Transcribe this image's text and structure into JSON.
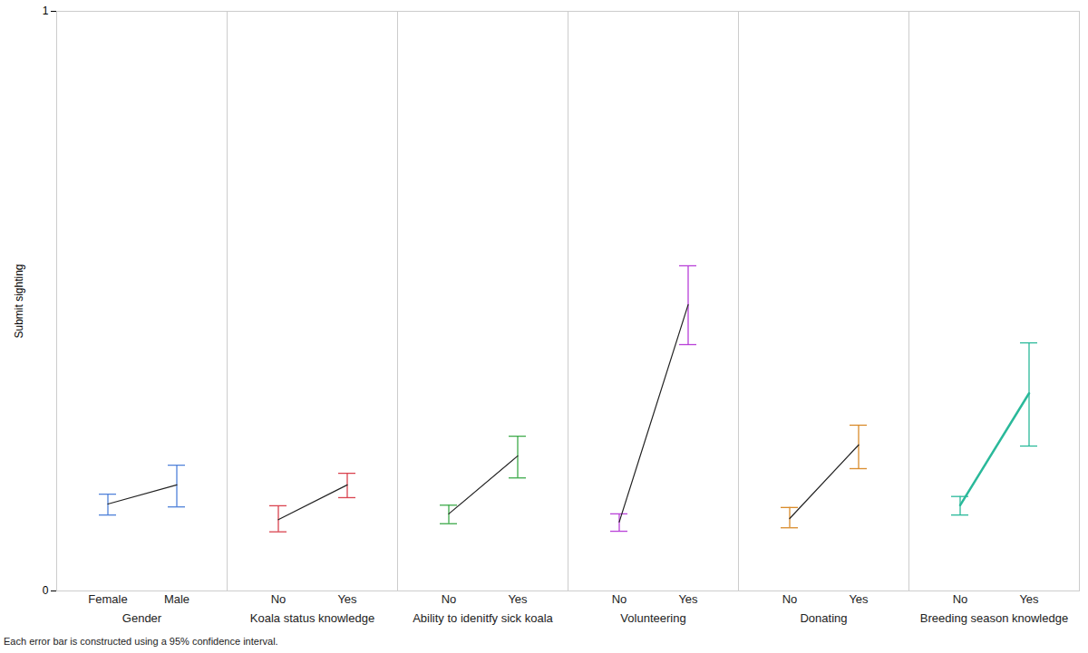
{
  "chart_data": {
    "type": "line",
    "y_label": "Submit sighting",
    "caption": "Each error bar is constructed using a 95% confidence interval.",
    "ylim": [
      0,
      1
    ],
    "yticks": [
      0,
      1
    ],
    "series": [
      {
        "name": "Gender",
        "color": "#4f81d9",
        "categories": [
          "Female",
          "Male"
        ],
        "values": [
          0.15,
          0.183
        ],
        "ci_low": [
          0.131,
          0.145
        ],
        "ci_high": [
          0.167,
          0.217
        ]
      },
      {
        "name": "Koala status knowledge",
        "color": "#d9434f",
        "categories": [
          "No",
          "Yes"
        ],
        "values": [
          0.123,
          0.183
        ],
        "ci_low": [
          0.102,
          0.161
        ],
        "ci_high": [
          0.147,
          0.203
        ]
      },
      {
        "name": "Ability to idenitfy sick koala",
        "color": "#3daa4a",
        "categories": [
          "No",
          "Yes"
        ],
        "values": [
          0.133,
          0.233
        ],
        "ci_low": [
          0.116,
          0.195
        ],
        "ci_high": [
          0.148,
          0.267
        ]
      },
      {
        "name": "Volunteering",
        "color": "#b840d8",
        "categories": [
          "No",
          "Yes"
        ],
        "values": [
          0.119,
          0.494
        ],
        "ci_low": [
          0.103,
          0.425
        ],
        "ci_high": [
          0.133,
          0.561
        ]
      },
      {
        "name": "Donating",
        "color": "#d98b2b",
        "categories": [
          "No",
          "Yes"
        ],
        "values": [
          0.125,
          0.252
        ],
        "ci_low": [
          0.109,
          0.211
        ],
        "ci_high": [
          0.144,
          0.286
        ]
      },
      {
        "name": "Breeding season knowledge",
        "color": "#2ab99a",
        "categories": [
          "No",
          "Yes"
        ],
        "values": [
          0.148,
          0.341
        ],
        "ci_low": [
          0.131,
          0.25
        ],
        "ci_high": [
          0.163,
          0.428
        ]
      }
    ]
  }
}
